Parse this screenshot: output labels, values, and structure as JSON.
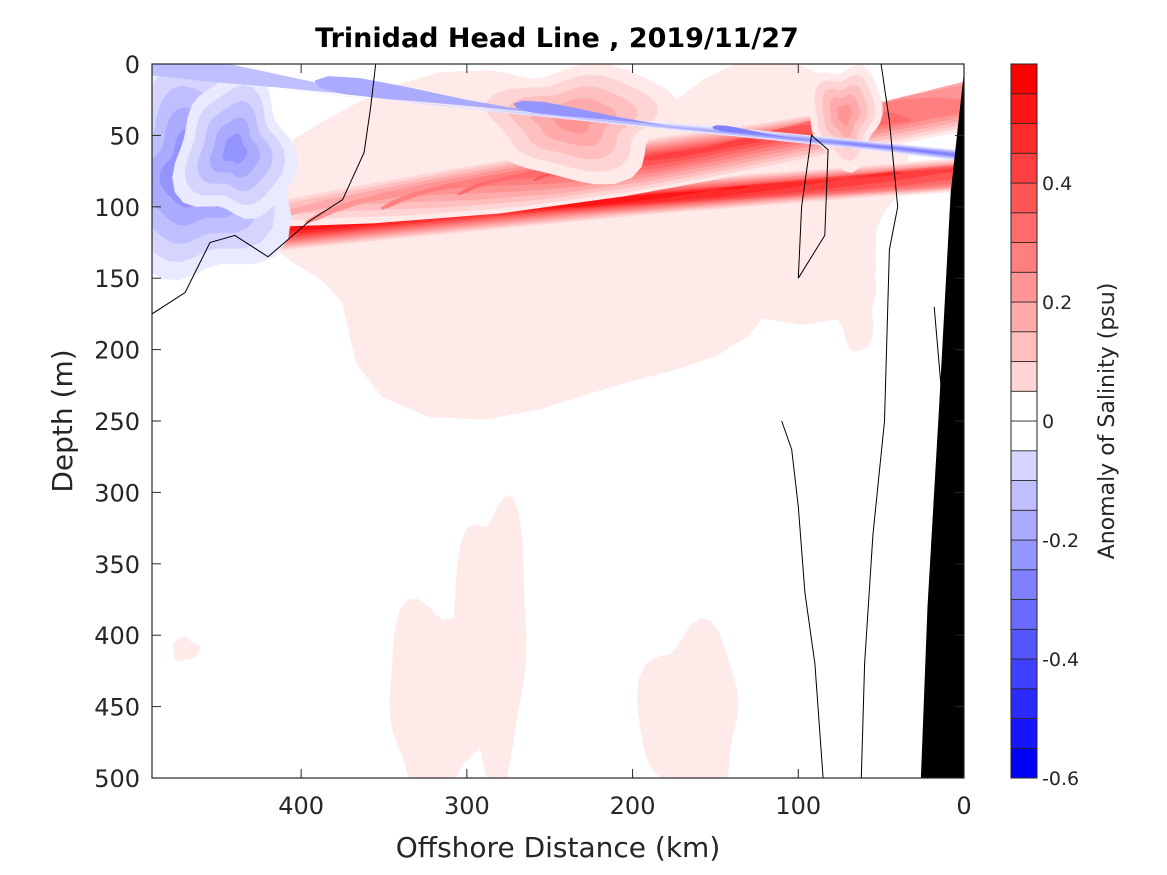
{
  "chart_data": {
    "type": "heatmap",
    "subtype": "filled-contour",
    "title": "Trinidad Head Line , 2019/11/27",
    "xlabel": "Offshore Distance (km)",
    "ylabel": "Depth (m)",
    "xlim": [
      490,
      0
    ],
    "ylim": [
      0,
      500
    ],
    "x_reversed": true,
    "y_reversed": true,
    "xticks": [
      400,
      300,
      200,
      100,
      0
    ],
    "xtick_labels": [
      "400",
      "300",
      "200",
      "100",
      "0"
    ],
    "yticks": [
      0,
      50,
      100,
      150,
      200,
      250,
      300,
      350,
      400,
      450,
      500
    ],
    "ytick_labels": [
      "0",
      "50",
      "100",
      "150",
      "200",
      "250",
      "300",
      "350",
      "400",
      "450",
      "500"
    ],
    "colorbar": {
      "label": "Anomaly of Salinity (psu)",
      "range": [
        -0.6,
        0.6
      ],
      "level_step": 0.05,
      "ticks": [
        0.4,
        0.2,
        0,
        -0.2,
        -0.4,
        -0.6
      ],
      "tick_labels": [
        "0.4",
        "0.2",
        "0",
        "-0.2",
        "-0.4",
        "-0.6"
      ],
      "colormap": "blue-white-red",
      "neg_color": "#0000ff",
      "zero_color": "#ffffff",
      "pos_color": "#ff0000"
    },
    "zero_contour_color": "#000000",
    "bathymetry_color": "#000000",
    "bathymetry": [
      [
        0,
        5
      ],
      [
        8,
        90
      ],
      [
        15,
        240
      ],
      [
        22,
        380
      ],
      [
        26,
        500
      ],
      [
        0,
        500
      ]
    ],
    "features": [
      {
        "name": "offshore-fresh-core",
        "sign": "negative",
        "center_km": 475,
        "center_depth_m": 85,
        "min_value": -0.3
      },
      {
        "name": "offshore-fresh-secondary",
        "sign": "negative",
        "center_km": 440,
        "center_depth_m": 70,
        "min_value": -0.25
      },
      {
        "name": "main-salty-core",
        "sign": "positive",
        "center_km": 315,
        "center_depth_m": 105,
        "max_value": 0.6
      },
      {
        "name": "secondary-salty-core",
        "sign": "positive",
        "center_km": 165,
        "center_depth_m": 60,
        "max_value": 0.45
      },
      {
        "name": "small-salty-core",
        "sign": "positive",
        "center_km": 70,
        "center_depth_m": 35,
        "max_value": 0.25
      },
      {
        "name": "nearshore-fresh-core",
        "sign": "negative",
        "center_km": 35,
        "center_depth_m": 55,
        "min_value": -0.3
      },
      {
        "name": "deep-weak-positive-west",
        "sign": "positive",
        "center_km": 320,
        "center_depth_m": 440,
        "max_value": 0.05
      },
      {
        "name": "deep-weak-positive-central",
        "sign": "positive",
        "center_km": 285,
        "center_depth_m": 400,
        "max_value": 0.05
      },
      {
        "name": "deep-weak-positive-east",
        "sign": "positive",
        "center_km": 165,
        "center_depth_m": 450,
        "max_value": 0.05
      }
    ]
  }
}
